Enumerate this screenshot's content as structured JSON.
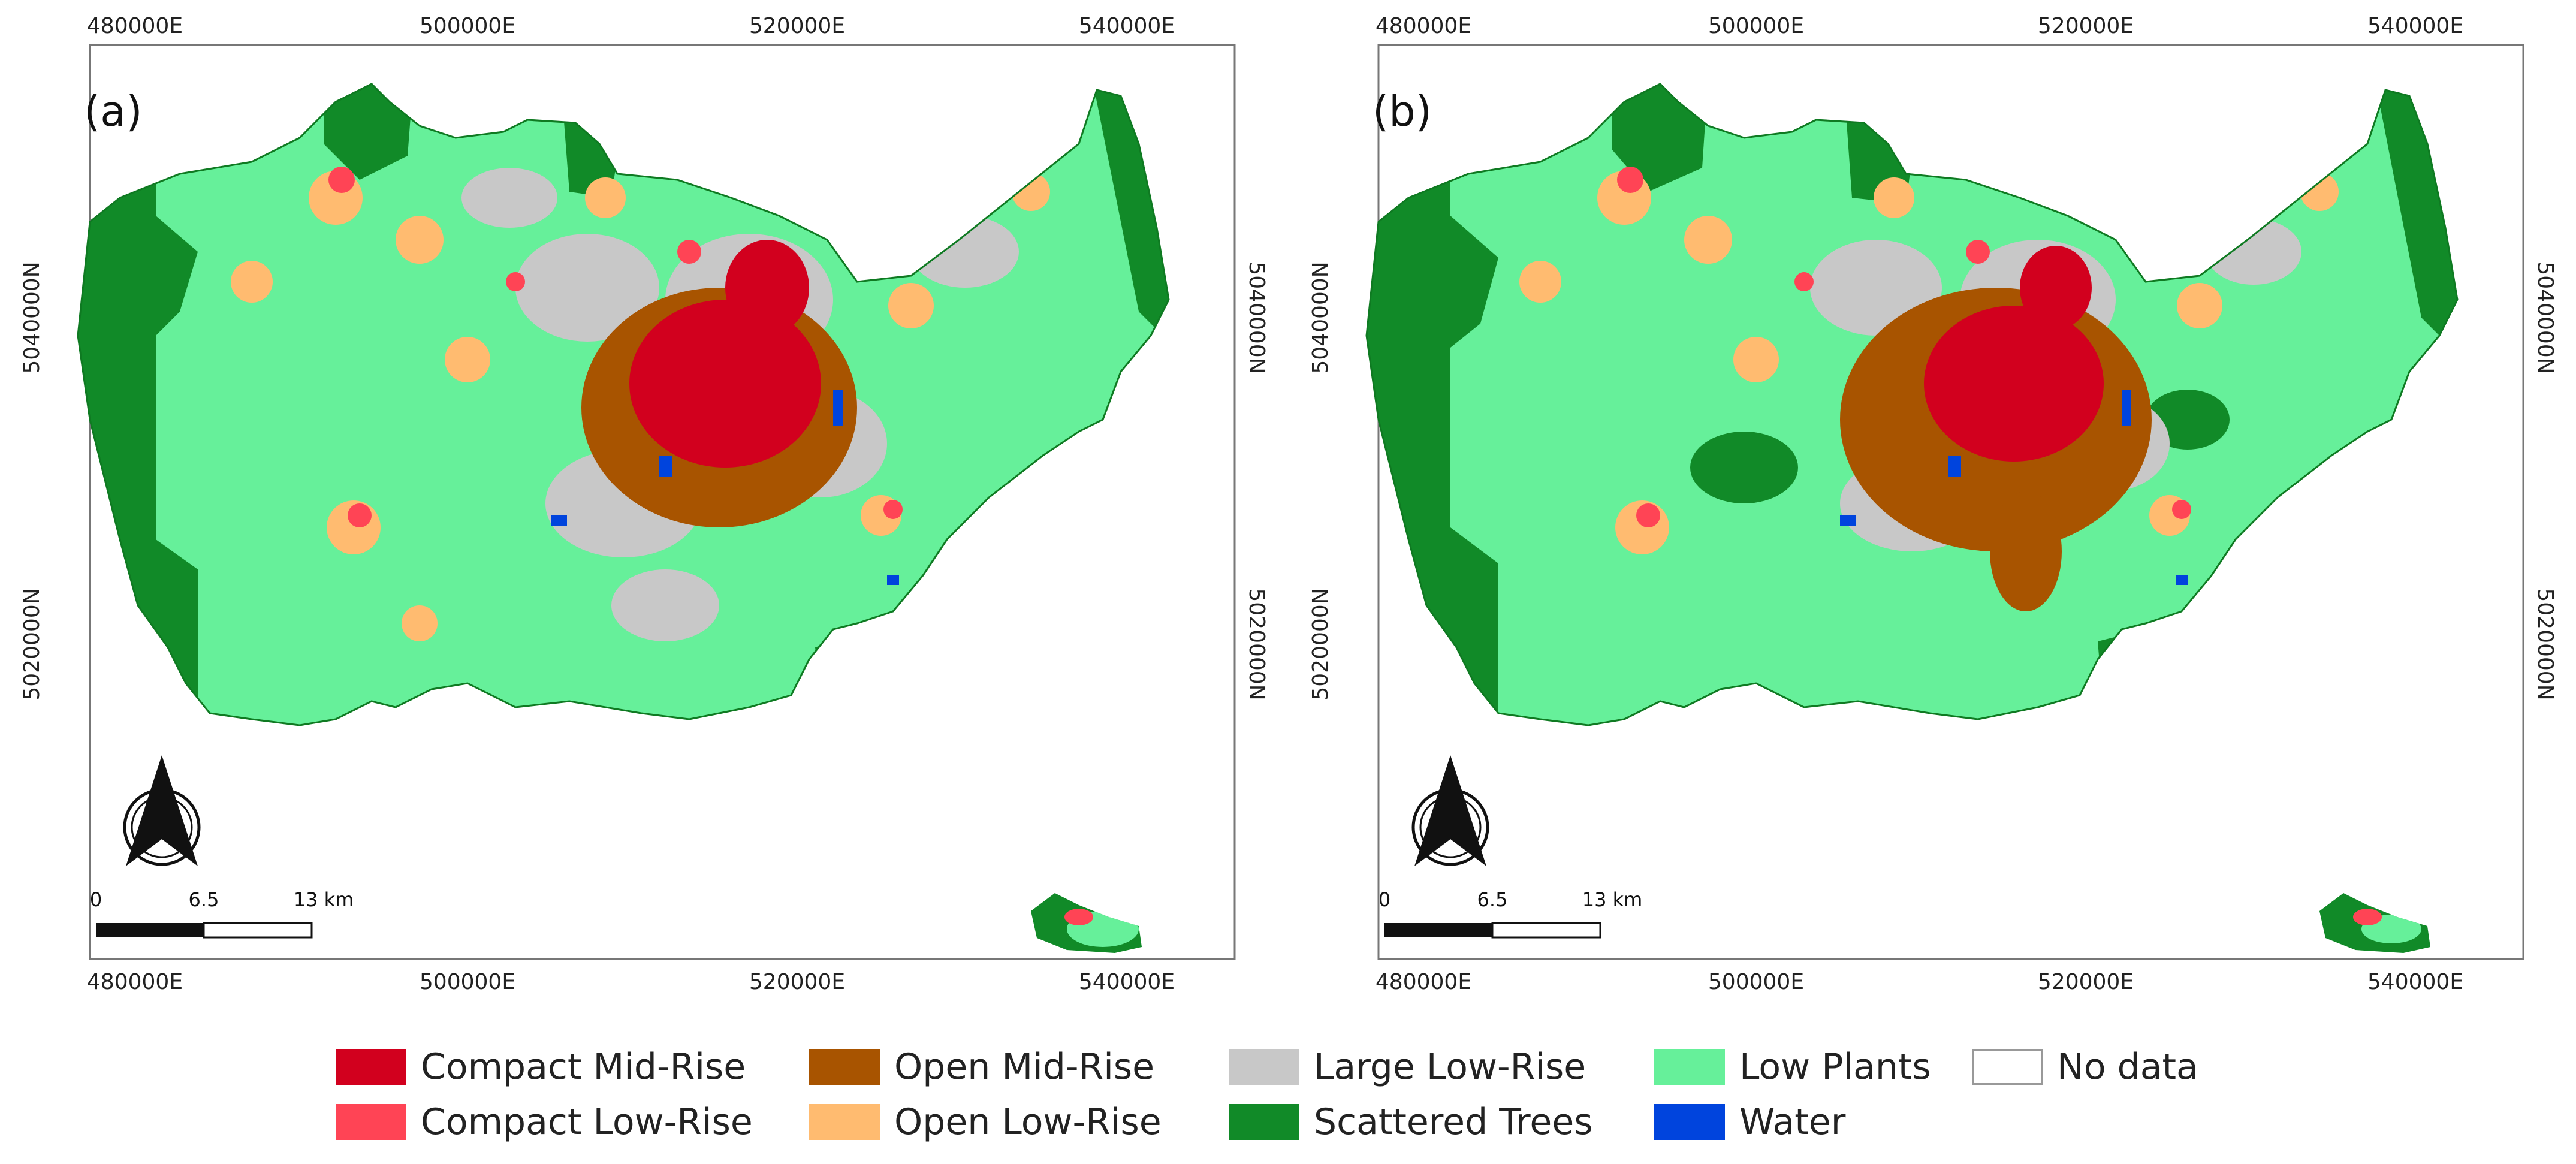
{
  "panels": [
    {
      "label": "(a)",
      "x_ticks_top": [
        "480000E",
        "500000E",
        "520000E",
        "540000E"
      ],
      "x_ticks_bottom": [
        "480000E",
        "500000E",
        "520000E",
        "540000E"
      ],
      "y_ticks_left": [
        "5040000N",
        "5020000N"
      ],
      "y_ticks_right": [
        "5040000N",
        "5020000N"
      ],
      "scale_bar": {
        "labels": [
          "0",
          "6.5",
          "13 km"
        ]
      }
    },
    {
      "label": "(b)",
      "x_ticks_top": [
        "480000E",
        "500000E",
        "520000E",
        "540000E"
      ],
      "x_ticks_bottom": [
        "480000E",
        "500000E",
        "520000E",
        "540000E"
      ],
      "y_ticks_left": [
        "5040000N",
        "5020000N"
      ],
      "y_ticks_right": [
        "5040000N",
        "5020000N"
      ],
      "scale_bar": {
        "labels": [
          "0",
          "6.5",
          "13 km"
        ]
      }
    }
  ],
  "legend": [
    {
      "label": "Compact Mid-Rise",
      "color": "#d2001e"
    },
    {
      "label": "Compact Low-Rise",
      "color": "#ff4455"
    },
    {
      "label": "Open Mid-Rise",
      "color": "#a85400"
    },
    {
      "label": "Open Low-Rise",
      "color": "#ffbb70"
    },
    {
      "label": "Large Low-Rise",
      "color": "#c8c8c8"
    },
    {
      "label": "Scattered Trees",
      "color": "#118a28"
    },
    {
      "label": "Low Plants",
      "color": "#66f09a"
    },
    {
      "label": "Water",
      "color": "#0044dd"
    },
    {
      "label": "No data",
      "color": "#ffffff"
    }
  ]
}
